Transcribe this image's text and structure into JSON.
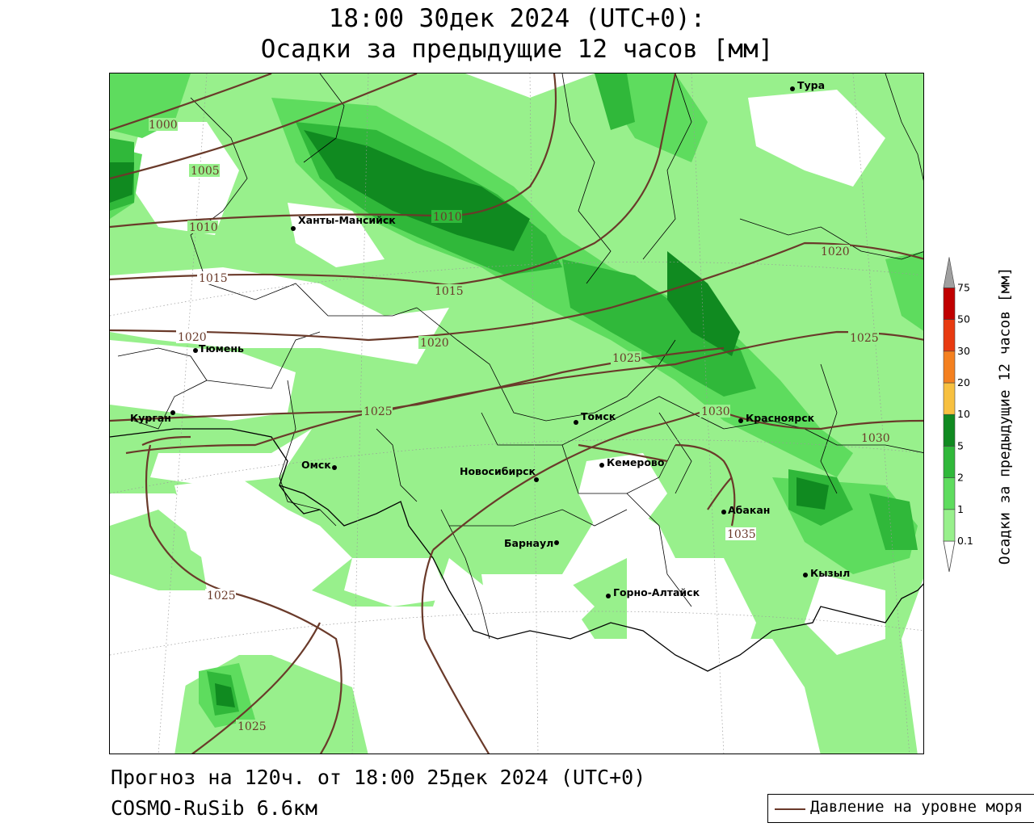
{
  "header": {
    "title_line1": "18:00 30дек 2024 (UTC+0):",
    "title_line2": "Осадки за предыдущие 12 часов [мм]"
  },
  "footer": {
    "forecast": "Прогноз на 120ч. от 18:00 25дек 2024 (UTC+0)",
    "model": "COSMO-RuSib 6.6км"
  },
  "legend": {
    "label": "Давление на уровне моря",
    "line_color": "#6a3a2a"
  },
  "colorbar": {
    "title": "Осадки за предыдущие 12 часов [мм]",
    "levels": [
      {
        "label": "0.1",
        "color": "#98f08c"
      },
      {
        "label": "1",
        "color": "#5edc5e"
      },
      {
        "label": "2",
        "color": "#30b83a"
      },
      {
        "label": "5",
        "color": "#108a20"
      },
      {
        "label": "10",
        "color": "#f7c040"
      },
      {
        "label": "20",
        "color": "#f4801f"
      },
      {
        "label": "30",
        "color": "#e83a10"
      },
      {
        "label": "50",
        "color": "#c00000"
      },
      {
        "label": "75",
        "color": "#a0a0a0"
      }
    ]
  },
  "cities": [
    {
      "name": "Тура"
    },
    {
      "name": "Ханты-Мансийск"
    },
    {
      "name": "Тюмень"
    },
    {
      "name": "Курган"
    },
    {
      "name": "Омск"
    },
    {
      "name": "Томск"
    },
    {
      "name": "Красноярск"
    },
    {
      "name": "Новосибирск"
    },
    {
      "name": "Кемерово"
    },
    {
      "name": "Абакан"
    },
    {
      "name": "Барнаул"
    },
    {
      "name": "Кызыл"
    },
    {
      "name": "Горно-Алтайск"
    }
  ],
  "isobar_labels": [
    "1000",
    "1005",
    "1010",
    "1010",
    "1015",
    "1015",
    "1020",
    "1020",
    "1020",
    "1025",
    "1025",
    "1025",
    "1025",
    "1025",
    "1030",
    "1030",
    "1035"
  ],
  "precip_colors": {
    "light": "#98f08c",
    "medium": "#5edc5e",
    "heavy": "#30b83a",
    "very_heavy": "#108a20"
  }
}
